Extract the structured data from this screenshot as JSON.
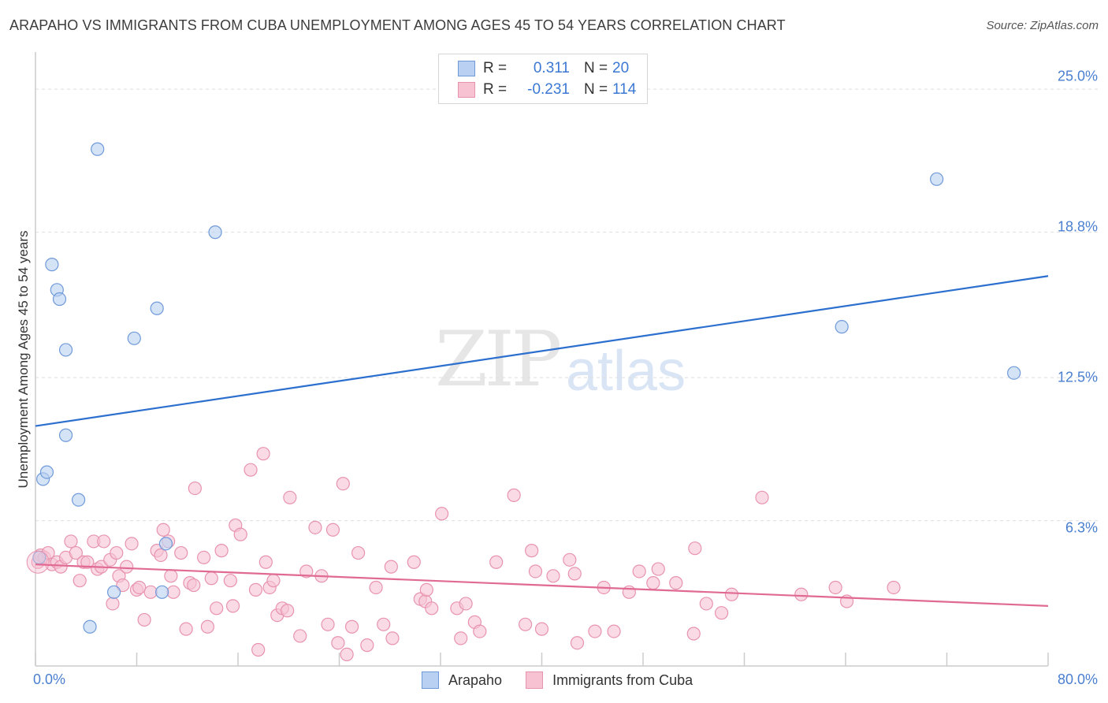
{
  "header": {
    "title": "ARAPAHO VS IMMIGRANTS FROM CUBA UNEMPLOYMENT AMONG AGES 45 TO 54 YEARS CORRELATION CHART",
    "source": "Source: ZipAtlas.com"
  },
  "watermark": {
    "zip": "ZIP",
    "atlas": "atlas"
  },
  "legend_top": [
    {
      "r_label": "R =",
      "r_value": "0.311",
      "n_label": "N =",
      "n_value": "20"
    },
    {
      "r_label": "R =",
      "r_value": "-0.231",
      "n_label": "N =",
      "n_value": "114"
    }
  ],
  "legend_bottom": [
    "Arapaho",
    "Immigrants from Cuba"
  ],
  "colors": {
    "blue_fill": "#b9d0f2",
    "blue_stroke": "#6f9ad9",
    "blue_line": "#2c6fce",
    "pink_fill": "#f7c3d3",
    "pink_stroke": "#e893ae",
    "pink_line": "#e06a93",
    "grid": "#dedede",
    "axis": "#cccccc"
  },
  "chart_data": {
    "type": "scatter",
    "title": "ARAPAHO VS IMMIGRANTS FROM CUBA UNEMPLOYMENT AMONG AGES 45 TO 54 YEARS CORRELATION CHART",
    "xlabel": "",
    "ylabel": "Unemployment Among Ages 45 to 54 years",
    "xlim": [
      0,
      80
    ],
    "ylim": [
      0,
      26.2
    ],
    "x_tick_labels": [
      "0.0%",
      "80.0%"
    ],
    "y_ticks": [
      6.3,
      12.5,
      18.8,
      25.0
    ],
    "y_tick_labels": [
      "6.3%",
      "12.5%",
      "18.8%",
      "25.0%"
    ],
    "grid": true,
    "series": [
      {
        "name": "Arapaho",
        "points": [
          [
            0.6,
            8.1
          ],
          [
            0.9,
            8.4
          ],
          [
            1.3,
            17.4
          ],
          [
            1.7,
            16.3
          ],
          [
            1.9,
            15.9
          ],
          [
            2.4,
            13.7
          ],
          [
            2.4,
            10.0
          ],
          [
            3.4,
            7.2
          ],
          [
            4.3,
            1.7
          ],
          [
            4.9,
            22.4
          ],
          [
            6.2,
            3.2
          ],
          [
            7.8,
            14.2
          ],
          [
            9.6,
            15.5
          ],
          [
            10.0,
            3.2
          ],
          [
            10.3,
            5.3
          ],
          [
            14.2,
            18.8
          ],
          [
            63.7,
            14.7
          ],
          [
            71.2,
            21.1
          ],
          [
            77.3,
            12.7
          ],
          [
            0.3,
            4.7
          ]
        ],
        "trend": {
          "x": [
            0,
            80
          ],
          "y": [
            10.4,
            16.9
          ]
        }
      },
      {
        "name": "Immigrants from Cuba",
        "points": [
          [
            0.2,
            4.5
          ],
          [
            0.4,
            4.8
          ],
          [
            0.7,
            4.7
          ],
          [
            1.0,
            4.9
          ],
          [
            1.3,
            4.4
          ],
          [
            1.7,
            4.5
          ],
          [
            2.0,
            4.3
          ],
          [
            2.4,
            4.7
          ],
          [
            2.8,
            5.4
          ],
          [
            3.2,
            4.9
          ],
          [
            3.5,
            3.7
          ],
          [
            3.8,
            4.5
          ],
          [
            4.1,
            4.5
          ],
          [
            4.6,
            5.4
          ],
          [
            4.9,
            4.2
          ],
          [
            5.2,
            4.3
          ],
          [
            5.4,
            5.4
          ],
          [
            5.9,
            4.6
          ],
          [
            6.1,
            2.7
          ],
          [
            6.4,
            4.9
          ],
          [
            6.6,
            3.9
          ],
          [
            6.9,
            3.5
          ],
          [
            7.2,
            4.3
          ],
          [
            7.6,
            5.3
          ],
          [
            8.0,
            3.3
          ],
          [
            8.2,
            3.4
          ],
          [
            8.6,
            2.0
          ],
          [
            9.1,
            3.2
          ],
          [
            9.6,
            5.0
          ],
          [
            9.9,
            4.8
          ],
          [
            10.1,
            5.9
          ],
          [
            10.5,
            5.4
          ],
          [
            10.7,
            3.9
          ],
          [
            10.9,
            3.2
          ],
          [
            11.5,
            4.9
          ],
          [
            11.9,
            1.6
          ],
          [
            12.2,
            3.6
          ],
          [
            12.5,
            3.5
          ],
          [
            12.6,
            7.7
          ],
          [
            13.3,
            4.7
          ],
          [
            13.6,
            1.7
          ],
          [
            13.9,
            3.8
          ],
          [
            14.3,
            2.5
          ],
          [
            14.7,
            5.0
          ],
          [
            15.4,
            3.7
          ],
          [
            15.6,
            2.6
          ],
          [
            15.8,
            6.1
          ],
          [
            16.2,
            5.7
          ],
          [
            17.0,
            8.5
          ],
          [
            17.4,
            3.3
          ],
          [
            17.6,
            0.7
          ],
          [
            18.0,
            9.2
          ],
          [
            18.2,
            4.5
          ],
          [
            18.5,
            3.4
          ],
          [
            18.8,
            3.7
          ],
          [
            19.1,
            2.2
          ],
          [
            19.5,
            2.5
          ],
          [
            19.9,
            2.4
          ],
          [
            20.1,
            7.3
          ],
          [
            20.9,
            1.3
          ],
          [
            21.4,
            4.1
          ],
          [
            22.1,
            6.0
          ],
          [
            22.6,
            3.9
          ],
          [
            23.1,
            1.8
          ],
          [
            23.5,
            5.9
          ],
          [
            23.9,
            1.0
          ],
          [
            24.3,
            7.9
          ],
          [
            24.6,
            0.5
          ],
          [
            25.0,
            1.7
          ],
          [
            25.5,
            4.9
          ],
          [
            26.2,
            0.9
          ],
          [
            26.9,
            3.4
          ],
          [
            27.5,
            1.8
          ],
          [
            28.1,
            4.3
          ],
          [
            28.2,
            1.2
          ],
          [
            29.9,
            4.5
          ],
          [
            30.4,
            2.9
          ],
          [
            30.8,
            2.8
          ],
          [
            30.9,
            3.3
          ],
          [
            31.3,
            2.5
          ],
          [
            32.1,
            6.6
          ],
          [
            33.3,
            2.5
          ],
          [
            33.6,
            1.2
          ],
          [
            34.0,
            2.7
          ],
          [
            34.7,
            1.9
          ],
          [
            35.1,
            1.5
          ],
          [
            36.4,
            4.5
          ],
          [
            37.8,
            7.4
          ],
          [
            38.7,
            1.8
          ],
          [
            39.2,
            5.0
          ],
          [
            39.5,
            4.1
          ],
          [
            40.0,
            1.6
          ],
          [
            40.9,
            3.9
          ],
          [
            42.2,
            4.6
          ],
          [
            42.6,
            4.0
          ],
          [
            42.8,
            1.0
          ],
          [
            44.2,
            1.5
          ],
          [
            44.9,
            3.4
          ],
          [
            45.7,
            1.5
          ],
          [
            46.9,
            3.2
          ],
          [
            47.7,
            4.1
          ],
          [
            48.8,
            3.6
          ],
          [
            49.2,
            4.2
          ],
          [
            50.6,
            3.6
          ],
          [
            52.0,
            1.4
          ],
          [
            52.1,
            5.1
          ],
          [
            53.0,
            2.7
          ],
          [
            54.2,
            2.3
          ],
          [
            55.0,
            3.1
          ],
          [
            57.4,
            7.3
          ],
          [
            60.5,
            3.1
          ],
          [
            63.2,
            3.4
          ],
          [
            64.1,
            2.8
          ],
          [
            67.8,
            3.4
          ]
        ],
        "trend": {
          "x": [
            0,
            80
          ],
          "y": [
            4.4,
            2.6
          ]
        }
      }
    ]
  }
}
